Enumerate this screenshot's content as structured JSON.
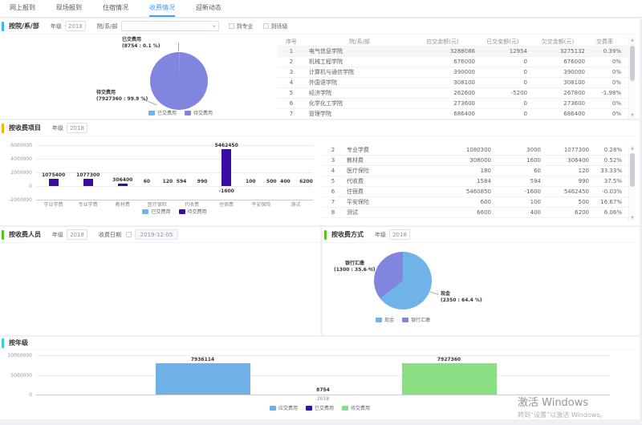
{
  "tabs": {
    "items": [
      {
        "label": "网上报到",
        "active": false
      },
      {
        "label": "现场报到",
        "active": false
      },
      {
        "label": "住宿情况",
        "active": false
      },
      {
        "label": "收费情况",
        "active": true
      },
      {
        "label": "迎新动态",
        "active": false
      }
    ]
  },
  "section1": {
    "title": "按院/系/部",
    "accent_color": "#36b4f5",
    "filters": {
      "year_label": "年级",
      "year_value": "2018",
      "dept_label": "院/系/部",
      "dept_value": "",
      "to_major_label": "到专业",
      "to_class_label": "到班级"
    },
    "pie_labels": {
      "paid_name": "已交费用",
      "paid_detail": "(8754 : 0.1 %)",
      "unpaid_name": "待交费用",
      "unpaid_detail": "(7927360 : 99.9 %)"
    },
    "table": {
      "headers": [
        "序号",
        "院/系/部",
        "应交金额(元)",
        "已交金额(元)",
        "欠交金额(元)",
        "交费率"
      ],
      "rows": [
        [
          "1",
          "电气信息学院",
          "3288086",
          "12954",
          "3275132",
          "0.39%"
        ],
        [
          "2",
          "机械工程学院",
          "676000",
          "0",
          "676000",
          "0%"
        ],
        [
          "3",
          "计算机与通信学院",
          "390000",
          "0",
          "390000",
          "0%"
        ],
        [
          "4",
          "外国语学院",
          "308100",
          "0",
          "308100",
          "0%"
        ],
        [
          "5",
          "经济学院",
          "262600",
          "-5200",
          "267800",
          "-1.98%"
        ],
        [
          "6",
          "化学化工学院",
          "273600",
          "0",
          "273600",
          "0%"
        ],
        [
          "7",
          "管理学院",
          "686400",
          "0",
          "686400",
          "0%"
        ]
      ]
    }
  },
  "section2": {
    "title": "按收费项目",
    "accent_color": "#ffb000",
    "filters": {
      "year_label": "年级",
      "year_value": "2018"
    },
    "table": {
      "rows": [
        [
          "2",
          "专业学费",
          "1080300",
          "3000",
          "1077300",
          "0.28%"
        ],
        [
          "3",
          "教材费",
          "308000",
          "1600",
          "306400",
          "0.52%"
        ],
        [
          "4",
          "医疗保险",
          "180",
          "60",
          "120",
          "33.33%"
        ],
        [
          "5",
          "代收费",
          "1584",
          "594",
          "990",
          "37.5%"
        ],
        [
          "6",
          "住宿费",
          "5460850",
          "-1600",
          "5462450",
          "-0.03%"
        ],
        [
          "7",
          "平安保险",
          "600",
          "100",
          "500",
          "16.67%"
        ],
        [
          "8",
          "测试",
          "6600",
          "400",
          "6200",
          "6.06%"
        ]
      ]
    }
  },
  "section3": {
    "title": "按收费人员",
    "accent_color": "#52c41a",
    "filters": {
      "year_label": "年级",
      "year_value": "2018",
      "date_label": "收费日期",
      "date_value": "2019-12-05"
    }
  },
  "section4": {
    "title": "按收费方式",
    "accent_color": "#52c41a",
    "filters": {
      "year_label": "年级",
      "year_value": "2018"
    },
    "pie_labels": {
      "bank_name": "银行汇缴",
      "bank_detail": "(1300 : 35.6 %)",
      "cash_name": "现金",
      "cash_detail": "(2350 : 64.4 %)"
    }
  },
  "section5": {
    "title": "按年级",
    "accent_color": "#2fd0e0"
  },
  "watermark": {
    "line1": "激活 Windows",
    "line2": "转到“设置”以激活 Windows。"
  },
  "chart_data": [
    {
      "id": "dept-pie",
      "type": "pie",
      "title": "按院/系/部",
      "slices": [
        {
          "name": "已交费用",
          "value": 8754,
          "pct": 0.1,
          "color": "#6cb5f0"
        },
        {
          "name": "待交费用",
          "value": 7927360,
          "pct": 99.9,
          "color": "#8185e0"
        }
      ],
      "legend": [
        {
          "label": "已交费用",
          "color": "#6cb5f0"
        },
        {
          "label": "待交费用",
          "color": "#8185e0"
        }
      ]
    },
    {
      "id": "fee-item-bars",
      "type": "bar",
      "title": "按收费项目",
      "categories": [
        "学业学费",
        "专业学费",
        "教材费",
        "医疗保险",
        "代收费",
        "住宿费",
        "平安保险",
        "测试"
      ],
      "series": [
        {
          "name": "已交费用",
          "color": "#6cb5f0",
          "values": [
            null,
            null,
            null,
            60,
            594,
            -1600,
            100,
            400
          ]
        },
        {
          "name": "待交费用",
          "color": "#3a0ca3",
          "values": [
            1075400,
            1077300,
            306400,
            120,
            990,
            5462450,
            500,
            6200
          ]
        }
      ],
      "y_ticks": [
        "6000000",
        "4000000",
        "2000000",
        "0",
        "-2000000"
      ],
      "ylim": [
        -2000000,
        6000000
      ],
      "legend": [
        {
          "label": "已交费用",
          "color": "#6cb5f0"
        },
        {
          "label": "待交费用",
          "color": "#3a0ca3"
        }
      ]
    },
    {
      "id": "pay-method-pie",
      "type": "pie",
      "title": "按收费方式",
      "slices": [
        {
          "name": "现金",
          "value": 2350,
          "pct": 64.4,
          "color": "#6fb3e9"
        },
        {
          "name": "银行汇缴",
          "value": 1300,
          "pct": 35.6,
          "color": "#8185e0"
        }
      ],
      "legend": [
        {
          "label": "现金",
          "color": "#6fb3e9"
        },
        {
          "label": "银行汇缴",
          "color": "#8185e0"
        }
      ]
    },
    {
      "id": "grade-bars",
      "type": "bar",
      "title": "按年级",
      "categories": [
        "2018"
      ],
      "series": [
        {
          "name": "应交费用",
          "color": "#6fb0e7",
          "values": [
            7936114
          ]
        },
        {
          "name": "已交费用",
          "color": "#2318b1",
          "values": [
            8754
          ]
        },
        {
          "name": "待交费用",
          "color": "#8ade84",
          "values": [
            7927360
          ]
        }
      ],
      "y_ticks": [
        "10000000",
        "5000000",
        "0"
      ],
      "ylim": [
        0,
        10000000
      ],
      "legend": [
        {
          "label": "应交费用",
          "color": "#6fb0e7"
        },
        {
          "label": "已交费用",
          "color": "#2318b1"
        },
        {
          "label": "待交费用",
          "color": "#8ade84"
        }
      ]
    }
  ]
}
